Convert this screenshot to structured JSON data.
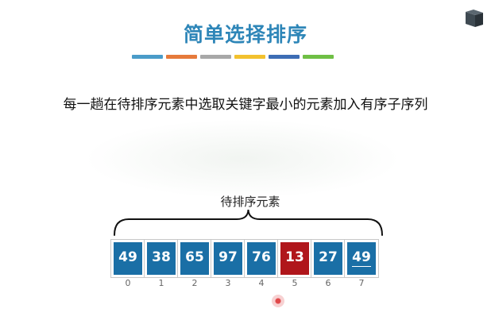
{
  "title": "简单选择排序",
  "color_bar": [
    "#4a9cc9",
    "#e67a3b",
    "#a8a8a8",
    "#f2c12e",
    "#3d6db5",
    "#6fbf45"
  ],
  "description": "每一趟在待排序元素中选取关键字最小的元素加入有序子序列",
  "brace_label": "待排序元素",
  "colors": {
    "cell_default": "#1a6fa6",
    "cell_highlight": "#b0161b"
  },
  "array": [
    {
      "value": "49",
      "index": "0",
      "highlight": false,
      "underline": false
    },
    {
      "value": "38",
      "index": "1",
      "highlight": false,
      "underline": false
    },
    {
      "value": "65",
      "index": "2",
      "highlight": false,
      "underline": false
    },
    {
      "value": "97",
      "index": "3",
      "highlight": false,
      "underline": false
    },
    {
      "value": "76",
      "index": "4",
      "highlight": false,
      "underline": false
    },
    {
      "value": "13",
      "index": "5",
      "highlight": true,
      "underline": false
    },
    {
      "value": "27",
      "index": "6",
      "highlight": false,
      "underline": false
    },
    {
      "value": "49",
      "index": "7",
      "highlight": false,
      "underline": true
    }
  ]
}
